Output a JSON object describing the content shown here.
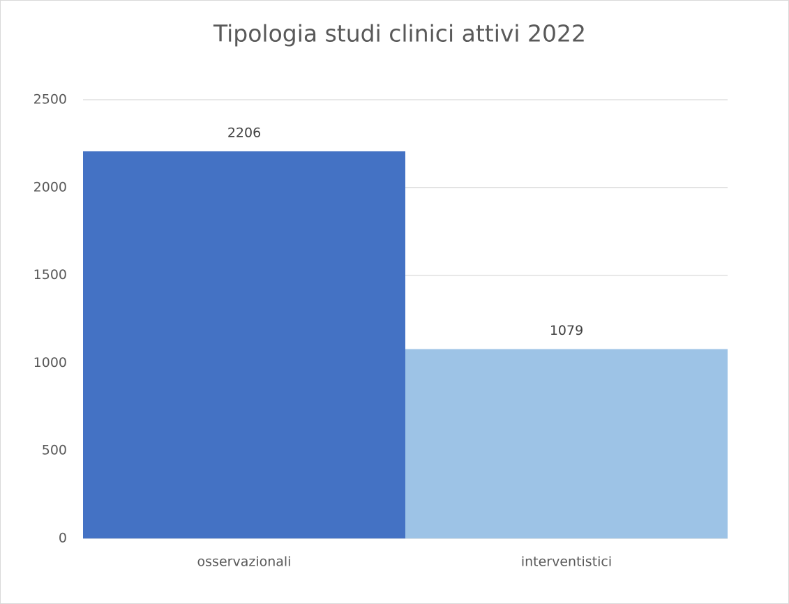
{
  "chart_data": {
    "type": "bar",
    "title": "Tipologia studi clinici attivi 2022",
    "categories": [
      "osservazionali",
      "interventistici"
    ],
    "values": [
      2206,
      1079
    ],
    "colors": [
      "#4472c4",
      "#9dc3e6"
    ],
    "ylim": [
      0,
      2500
    ],
    "yticks": [
      0,
      500,
      1000,
      1500,
      2000,
      2500
    ],
    "grid": true
  }
}
